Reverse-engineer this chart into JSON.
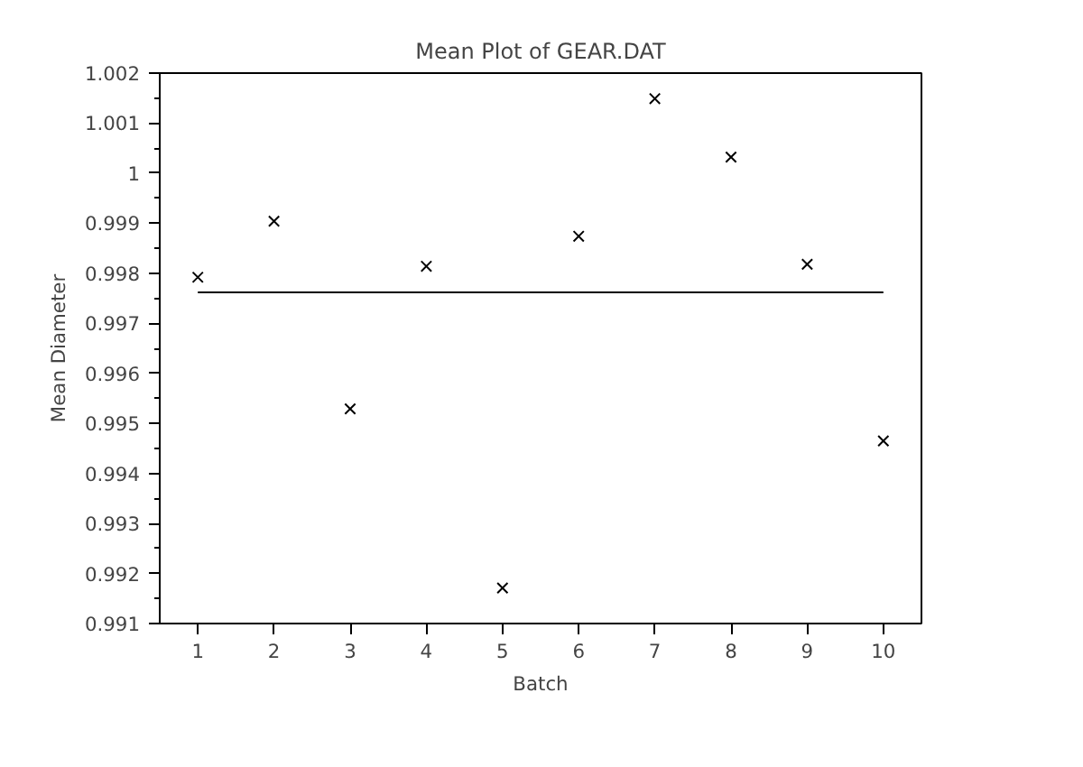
{
  "chart_data": {
    "type": "scatter",
    "title": "Mean Plot of GEAR.DAT",
    "xlabel": "Batch",
    "ylabel": "Mean Diameter",
    "x": [
      1,
      2,
      3,
      4,
      5,
      6,
      7,
      8,
      9,
      10
    ],
    "series": [
      {
        "color": "#000000",
        "values": [
          0.99792,
          0.99904,
          0.99529,
          0.99814,
          0.99171,
          0.99874,
          1.00149,
          1.00032,
          0.99818,
          0.99465
        ],
        "marker": "cross"
      },
      {
        "type": "line",
        "color": "#000000",
        "x": [
          1,
          10
        ],
        "values": [
          0.99762,
          0.99762
        ],
        "marker": "none"
      }
    ],
    "xlim": [
      0.5,
      10.5
    ],
    "xticks": [
      1,
      2,
      3,
      4,
      5,
      6,
      7,
      8,
      9,
      10
    ],
    "ylim": [
      0.991,
      1.002
    ],
    "yticks": [
      0.991,
      0.992,
      0.993,
      0.994,
      0.995,
      0.996,
      0.997,
      0.998,
      0.999,
      1,
      1.001,
      1.002
    ],
    "grid": false
  }
}
